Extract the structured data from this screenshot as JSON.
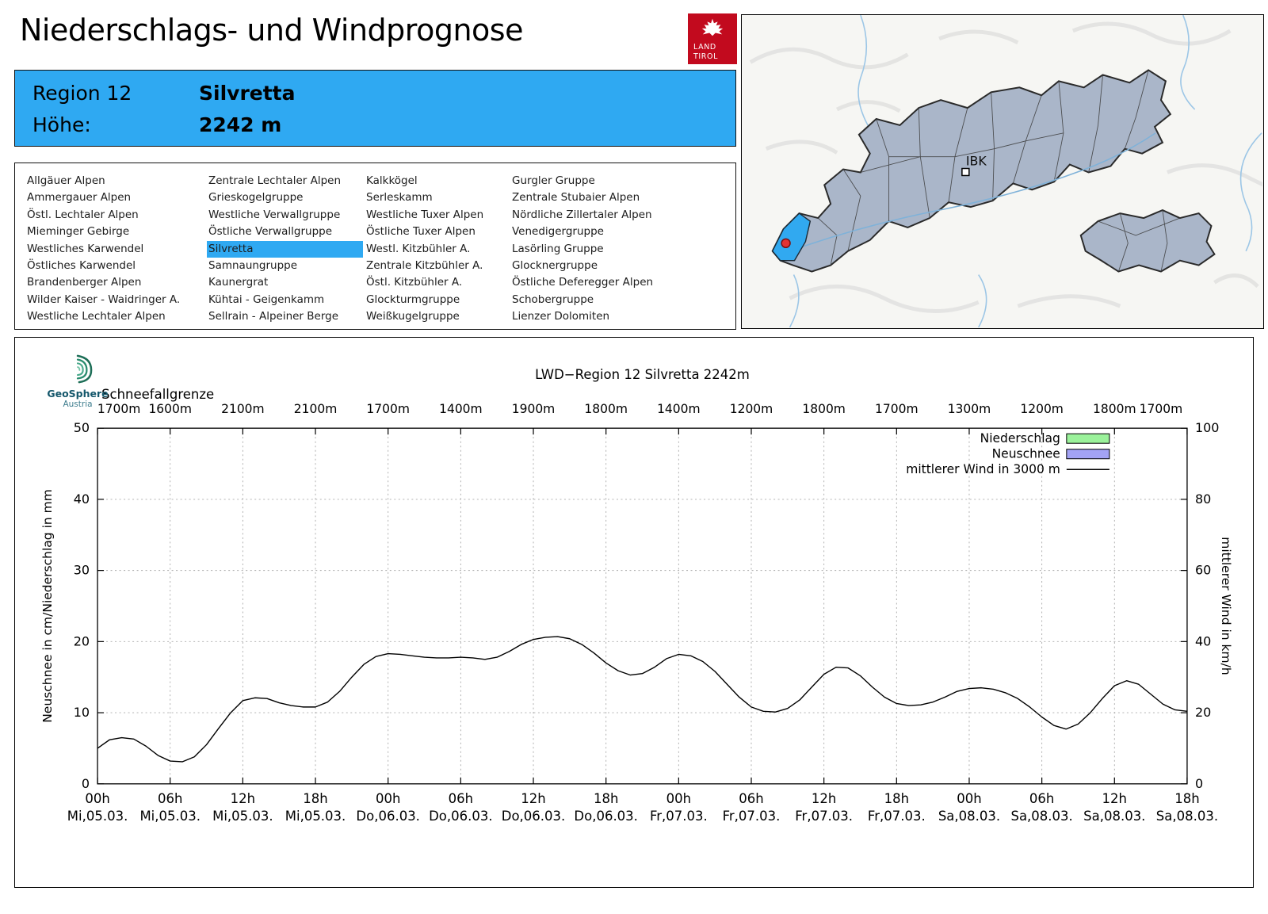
{
  "page": {
    "title": "Niederschlags- und Windprognose"
  },
  "logo": {
    "line1": "LAND",
    "line2": "TIROL"
  },
  "region_info": {
    "region_label": "Region 12",
    "region_name": "Silvretta",
    "height_label": "Höhe:",
    "height_value": "2242 m"
  },
  "region_list": {
    "selected": "Silvretta",
    "columns": [
      [
        "Allgäuer Alpen",
        "Ammergauer Alpen",
        "Östl. Lechtaler Alpen",
        "Mieminger Gebirge",
        "Westliches Karwendel",
        "Östliches Karwendel",
        "Brandenberger Alpen",
        "Wilder Kaiser - Waidringer A.",
        "Westliche Lechtaler Alpen"
      ],
      [
        "Zentrale Lechtaler Alpen",
        "Grieskogelgruppe",
        "Westliche Verwallgruppe",
        "Östliche Verwallgruppe",
        "Silvretta",
        "Samnaungruppe",
        "Kaunergrat",
        "Kühtai - Geigenkamm",
        "Sellrain - Alpeiner Berge"
      ],
      [
        "Kalkkögel",
        "Serleskamm",
        "Westliche Tuxer Alpen",
        "Östliche Tuxer Alpen",
        "Westl. Kitzbühler A.",
        "Zentrale Kitzbühler A.",
        "Östl. Kitzbühler A.",
        "Glockturmgruppe",
        "Weißkugelgruppe"
      ],
      [
        "Gurgler Gruppe",
        "Zentrale Stubaier Alpen",
        "Nördliche Zillertaler Alpen",
        "Venedigergruppe",
        "Lasörling Gruppe",
        "Glocknergruppe",
        "Östliche Deferegger Alpen",
        "Schobergruppe",
        "Lienzer Dolomiten"
      ]
    ]
  },
  "map": {
    "city_label": "IBK"
  },
  "geosphere": {
    "name": "GeoSphere",
    "country": "Austria"
  },
  "chart_data": {
    "type": "line",
    "title": "LWD−Region 12 Silvretta 2242m",
    "snowline_label": "Schneefallgrenze",
    "snowline_values": [
      "1700m",
      "1600m",
      "2100m",
      "2100m",
      "1700m",
      "1400m",
      "1900m",
      "1800m",
      "1400m",
      "1200m",
      "1800m",
      "1700m",
      "1300m",
      "1200m",
      "1800m",
      "1700m"
    ],
    "ylabel_left": "Neuschnee in cm/Niederschlag in mm",
    "ylabel_right": "mittlerer Wind in km/h",
    "ylim_left": [
      0,
      50
    ],
    "ylim_right": [
      0,
      100
    ],
    "yticks_left": [
      0,
      10,
      20,
      30,
      40,
      50
    ],
    "yticks_right": [
      0,
      20,
      40,
      60,
      80,
      100
    ],
    "x_hours_range": [
      0,
      90
    ],
    "x_tick_step_hours": 6,
    "x_ticks": [
      {
        "hour": "00h",
        "date": "Mi,05.03."
      },
      {
        "hour": "06h",
        "date": "Mi,05.03."
      },
      {
        "hour": "12h",
        "date": "Mi,05.03."
      },
      {
        "hour": "18h",
        "date": "Mi,05.03."
      },
      {
        "hour": "00h",
        "date": "Do,06.03."
      },
      {
        "hour": "06h",
        "date": "Do,06.03."
      },
      {
        "hour": "12h",
        "date": "Do,06.03."
      },
      {
        "hour": "18h",
        "date": "Do,06.03."
      },
      {
        "hour": "00h",
        "date": "Fr,07.03."
      },
      {
        "hour": "06h",
        "date": "Fr,07.03."
      },
      {
        "hour": "12h",
        "date": "Fr,07.03."
      },
      {
        "hour": "18h",
        "date": "Fr,07.03."
      },
      {
        "hour": "00h",
        "date": "Sa,08.03."
      },
      {
        "hour": "06h",
        "date": "Sa,08.03."
      },
      {
        "hour": "12h",
        "date": "Sa,08.03."
      },
      {
        "hour": "18h",
        "date": "Sa,08.03."
      }
    ],
    "legend": [
      {
        "label": "Niederschlag",
        "type": "box",
        "color": "#9bf29b"
      },
      {
        "label": "Neuschnee",
        "type": "box",
        "color": "#a3a3f5"
      },
      {
        "label": "mittlerer Wind in 3000 m",
        "type": "line",
        "color": "#000000"
      }
    ],
    "series": [
      {
        "name": "Niederschlag",
        "unit": "mm",
        "values": []
      },
      {
        "name": "Neuschnee",
        "unit": "cm",
        "values": []
      },
      {
        "name": "mittlerer Wind in 3000 m",
        "unit": "km/h",
        "axis": "right",
        "x_start_hour": 0,
        "x_step_hours": 1,
        "values_kmh": [
          10.0,
          12.4,
          13.0,
          12.6,
          10.6,
          8.0,
          6.4,
          6.2,
          7.6,
          11.0,
          15.6,
          20.0,
          23.4,
          24.2,
          24.0,
          22.8,
          22.0,
          21.6,
          21.6,
          23.0,
          26.0,
          30.0,
          33.6,
          35.8,
          36.6,
          36.4,
          36.0,
          35.6,
          35.4,
          35.4,
          35.6,
          35.4,
          35.0,
          35.6,
          37.2,
          39.2,
          40.6,
          41.2,
          41.4,
          40.8,
          39.2,
          36.8,
          34.0,
          31.8,
          30.6,
          31.0,
          32.8,
          35.2,
          36.4,
          36.0,
          34.4,
          31.6,
          28.0,
          24.4,
          21.6,
          20.4,
          20.2,
          21.2,
          23.6,
          27.2,
          30.8,
          32.8,
          32.6,
          30.4,
          27.2,
          24.4,
          22.6,
          22.0,
          22.2,
          23.0,
          24.4,
          26.0,
          26.8,
          27.0,
          26.6,
          25.6,
          24.0,
          21.6,
          18.8,
          16.4,
          15.4,
          16.8,
          20.0,
          24.0,
          27.6,
          29.0,
          28.0,
          25.2,
          22.4,
          20.8,
          20.4
        ]
      }
    ]
  }
}
